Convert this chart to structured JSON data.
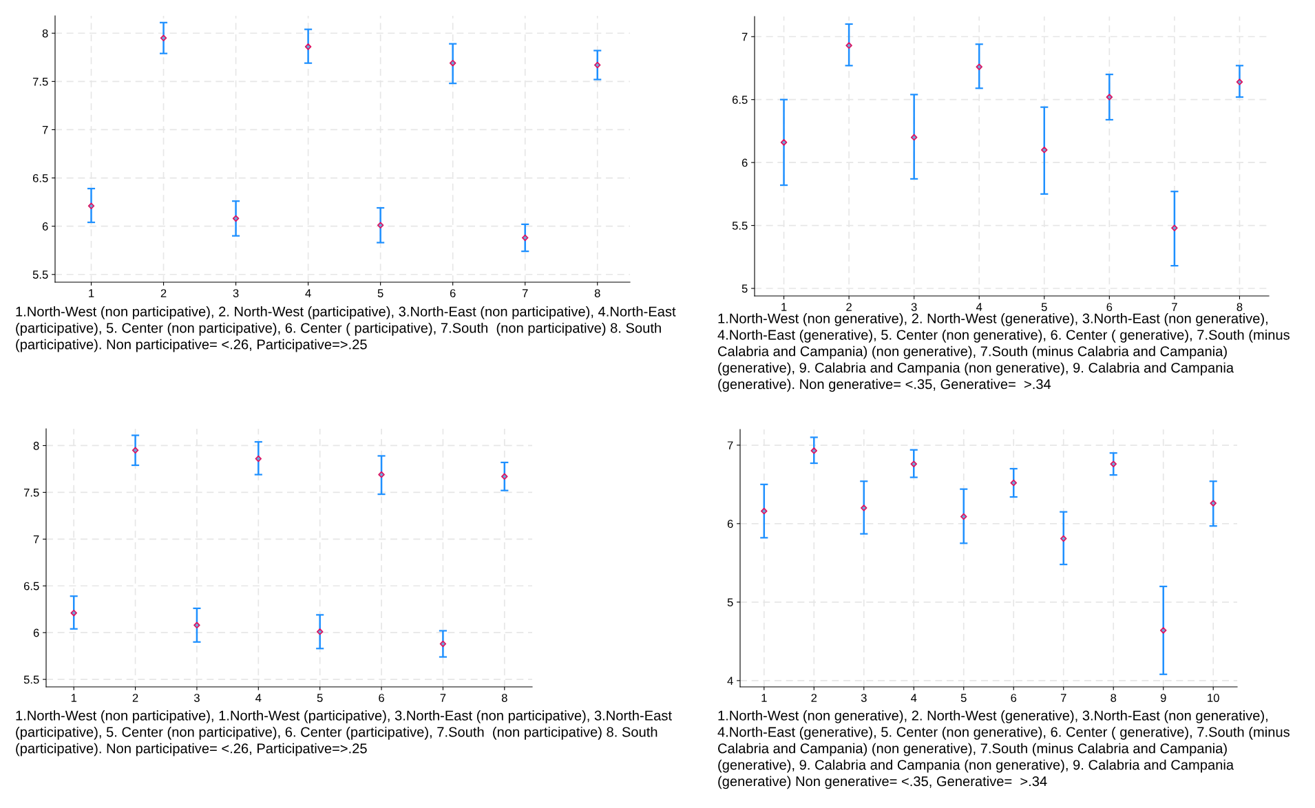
{
  "chart_data": [
    {
      "type": "scatter",
      "x": [
        1,
        2,
        3,
        4,
        5,
        6,
        7,
        8
      ],
      "xlim": [
        0.5,
        8.45
      ],
      "xticks": [
        1,
        2,
        3,
        4,
        5,
        6,
        7,
        8
      ],
      "ylim": [
        5.42,
        8.18
      ],
      "yticks": [
        5.5,
        6,
        6.5,
        7,
        7.5,
        8
      ],
      "grid": true,
      "marker": "diamond",
      "series": [
        {
          "color": "#e0115f",
          "values": [
            6.21,
            7.95,
            6.08,
            7.86,
            6.01,
            7.69,
            5.88,
            7.67
          ],
          "errors": [
            [
              6.04,
              6.39
            ],
            [
              7.79,
              8.11
            ],
            [
              5.9,
              6.26
            ],
            [
              7.69,
              8.04
            ],
            [
              5.83,
              6.19
            ],
            [
              7.48,
              7.89
            ],
            [
              5.74,
              6.02
            ],
            [
              7.52,
              7.82
            ]
          ]
        }
      ],
      "annotations": [
        "1.North-West (non participative), 2. North-West (participative), 3.North-East (non participative), 4.North-East (participative), 5. Center (non participative), 6. Center ( participative), 7.South  (non participative) 8. South (participative). Non participative= <.26, Participative=>.25"
      ]
    },
    {
      "type": "scatter",
      "x": [
        1,
        2,
        3,
        4,
        5,
        6,
        7,
        8
      ],
      "xlim": [
        0.55,
        8.45
      ],
      "xticks": [
        1,
        2,
        3,
        4,
        5,
        6,
        7,
        8
      ],
      "ylim": [
        4.94,
        7.16
      ],
      "yticks": [
        5,
        5.5,
        6,
        6.5,
        7
      ],
      "grid": true,
      "marker": "diamond",
      "series": [
        {
          "color": "#e0115f",
          "values": [
            6.16,
            6.93,
            6.2,
            6.76,
            6.1,
            6.52,
            5.48,
            6.64
          ],
          "errors": [
            [
              5.82,
              6.5
            ],
            [
              6.77,
              7.1
            ],
            [
              5.87,
              6.54
            ],
            [
              6.59,
              6.94
            ],
            [
              5.75,
              6.44
            ],
            [
              6.34,
              6.7
            ],
            [
              5.18,
              5.77
            ],
            [
              6.52,
              6.77
            ]
          ]
        }
      ],
      "annotations": [
        "1.North-West (non generative), 2. North-West (generative), 3.North-East (non generative), 4.North-East (generative), 5. Center (non generative), 6. Center ( generative), 7.South (minus Calabria and Campania) (non generative), 7.South (minus Calabria and Campania) (generative), 9. Calabria and Campania (non generative), 9. Calabria and Campania (generative). Non generative= <.35, Generative=  >.34"
      ]
    },
    {
      "type": "scatter",
      "x": [
        1,
        2,
        3,
        4,
        5,
        6,
        7,
        8
      ],
      "xlim": [
        0.55,
        8.45
      ],
      "xticks": [
        1,
        2,
        3,
        4,
        5,
        6,
        7,
        8
      ],
      "ylim": [
        5.42,
        8.18
      ],
      "yticks": [
        5.5,
        6,
        6.5,
        7,
        7.5,
        8
      ],
      "grid": true,
      "marker": "diamond",
      "series": [
        {
          "color": "#e0115f",
          "values": [
            6.21,
            7.95,
            6.08,
            7.86,
            6.01,
            7.69,
            5.88,
            7.67
          ],
          "errors": [
            [
              6.04,
              6.39
            ],
            [
              7.79,
              8.11
            ],
            [
              5.9,
              6.26
            ],
            [
              7.69,
              8.04
            ],
            [
              5.83,
              6.19
            ],
            [
              7.48,
              7.89
            ],
            [
              5.74,
              6.02
            ],
            [
              7.52,
              7.82
            ]
          ]
        }
      ],
      "annotations": [
        "1.North-West (non participative), 1.North-West (participative), 3.North-East (non participative), 3.North-East (participative), 5. Center (non participative), 6. Center (participative), 7.South  (non participative) 8. South (participative). Non participative= <.26, Participative=>.25"
      ]
    },
    {
      "type": "scatter",
      "x": [
        1,
        2,
        3,
        4,
        5,
        6,
        7,
        8,
        9,
        10
      ],
      "xlim": [
        0.52,
        10.48
      ],
      "xticks": [
        1,
        2,
        3,
        4,
        5,
        6,
        7,
        8,
        9,
        10
      ],
      "ylim": [
        3.92,
        7.2
      ],
      "yticks": [
        4,
        5,
        6,
        7
      ],
      "grid": true,
      "marker": "diamond",
      "series": [
        {
          "color": "#e0115f",
          "values": [
            6.16,
            6.93,
            6.2,
            6.76,
            6.09,
            6.52,
            5.81,
            6.76,
            4.64,
            6.26
          ],
          "errors": [
            [
              5.82,
              6.5
            ],
            [
              6.77,
              7.1
            ],
            [
              5.87,
              6.54
            ],
            [
              6.59,
              6.94
            ],
            [
              5.75,
              6.44
            ],
            [
              6.34,
              6.7
            ],
            [
              5.48,
              6.15
            ],
            [
              6.62,
              6.9
            ],
            [
              4.08,
              5.2
            ],
            [
              5.97,
              6.54
            ]
          ]
        }
      ],
      "annotations": [
        "1.North-West (non generative), 2. North-West (generative), 3.North-East (non generative), 4.North-East (generative), 5. Center (non generative), 6. Center ( generative), 7.South (minus Calabria and Campania) (non generative), 7.South (minus Calabria and Campania) (generative), 9. Calabria and Campania (non generative), 9. Calabria and Campania (generative) Non generative= <.35, Generative=  >.34"
      ]
    }
  ]
}
